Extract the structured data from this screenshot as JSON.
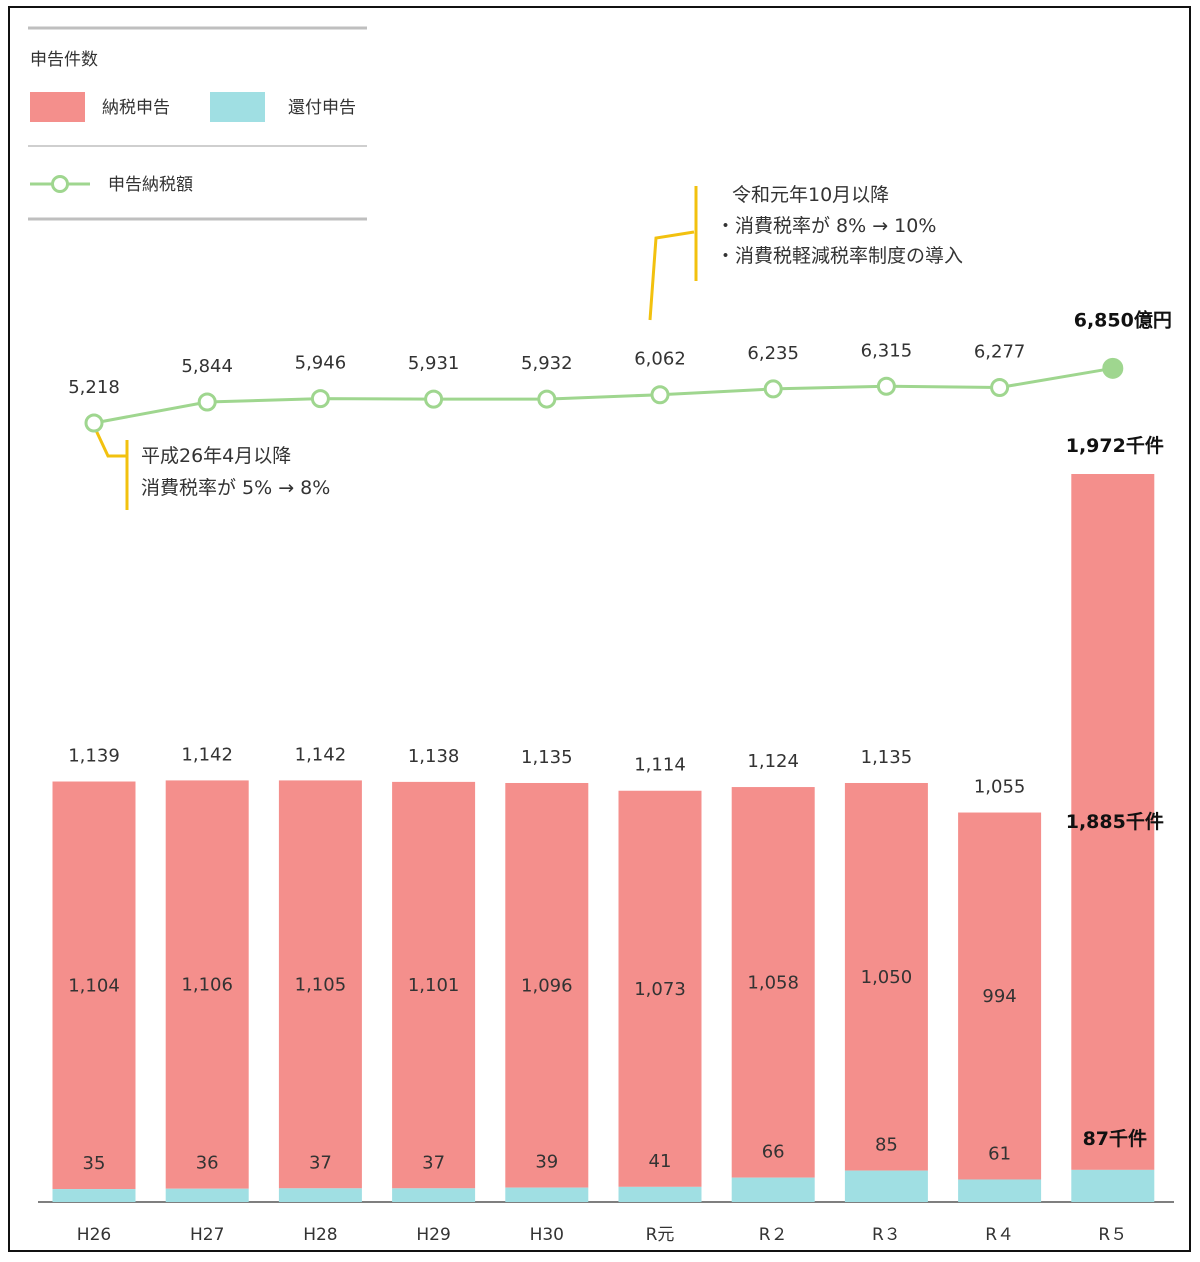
{
  "legend": {
    "title": "申告件数",
    "items": [
      {
        "label": "納税申告",
        "color": "#f48f8c"
      },
      {
        "label": "還付申告",
        "color": "#a0dfe3"
      }
    ],
    "line_label": "申告納税額"
  },
  "annotations": {
    "h26": {
      "line1": "平成26年4月以降",
      "line2": "消費税率が 5% → 8%"
    },
    "r1": {
      "line1": "令和元年10月以降",
      "line2": "・消費税率が 8% → 10%",
      "line3": "・消費税軽減税率制度の導入"
    }
  },
  "colors": {
    "payment": "#f48f8c",
    "refund": "#a0dfe3",
    "line": "#9fd68f",
    "annotation": "#f2c10f",
    "axis": "#555555"
  },
  "chart_data": {
    "type": "bar",
    "stacked": true,
    "categories": [
      "H26",
      "H27",
      "H28",
      "H29",
      "H30",
      "R元",
      "R２",
      "R３",
      "R４",
      "R５"
    ],
    "series": [
      {
        "name": "納税申告",
        "values": [
          1104,
          1106,
          1105,
          1101,
          1096,
          1073,
          1058,
          1050,
          994,
          1885
        ]
      },
      {
        "name": "還付申告",
        "values": [
          35,
          36,
          37,
          37,
          39,
          41,
          66,
          85,
          61,
          87
        ]
      }
    ],
    "totals": [
      1139,
      1142,
      1142,
      1138,
      1135,
      1114,
      1124,
      1135,
      1055,
      1972
    ],
    "line_series": {
      "name": "申告納税額",
      "values": [
        5218,
        5844,
        5946,
        5931,
        5932,
        6062,
        6235,
        6315,
        6277,
        6850
      ]
    },
    "labels": {
      "payment": [
        "1,104",
        "1,106",
        "1,105",
        "1,101",
        "1,096",
        "1,073",
        "1,058",
        "1,050",
        "994",
        "1,885千件"
      ],
      "refund": [
        "35",
        "36",
        "37",
        "37",
        "39",
        "41",
        "66",
        "85",
        "61",
        "87千件"
      ],
      "total": [
        "1,139",
        "1,142",
        "1,142",
        "1,138",
        "1,135",
        "1,114",
        "1,124",
        "1,135",
        "1,055",
        "1,972千件"
      ],
      "line": [
        "5,218",
        "5,844",
        "5,946",
        "5,931",
        "5,932",
        "6,062",
        "6,235",
        "6,315",
        "6,277",
        "6,850億円"
      ]
    },
    "grid": false,
    "legend_position": "top-left"
  }
}
